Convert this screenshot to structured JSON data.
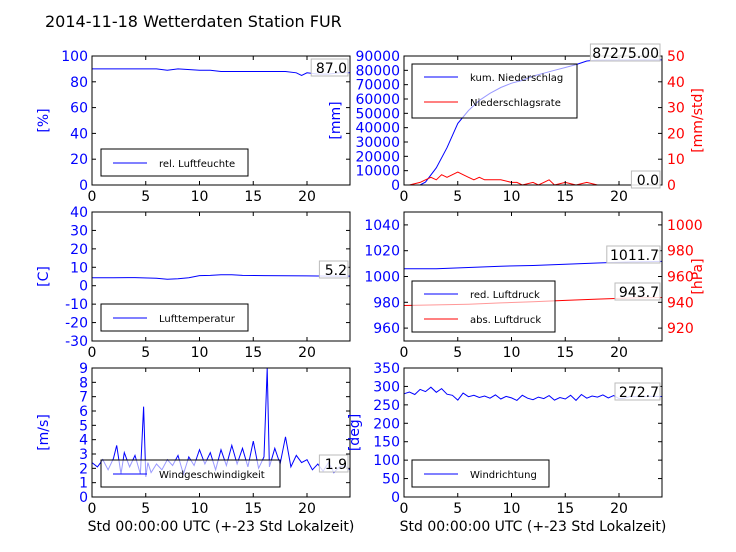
{
  "title": "2014-11-18 Wetterdaten Station FUR",
  "colors": {
    "primary": "#0000ff",
    "secondary": "#ff0000",
    "frame": "#000000",
    "axis_text": "#000000"
  },
  "chart_data": [
    {
      "type": "line",
      "id": "humidity",
      "ylabel": "[%]",
      "xlim": [
        0,
        24
      ],
      "ylim": [
        0,
        100
      ],
      "xticks": [
        "0",
        "5",
        "10",
        "15",
        "20"
      ],
      "yticks": [
        "0",
        "20",
        "40",
        "60",
        "80",
        "100"
      ],
      "last_value": "87.0",
      "legend": "lower-left",
      "series": [
        {
          "name": "rel. Luftfeuchte",
          "color": "#0000ff",
          "x": [
            0,
            2,
            4,
            6,
            7,
            8,
            10,
            11,
            12,
            14,
            16,
            18,
            19,
            19.5,
            20,
            21,
            22,
            23,
            24
          ],
          "y": [
            90,
            90,
            90,
            90,
            89,
            90,
            89,
            89,
            88,
            88,
            88,
            88,
            87,
            85,
            87,
            86,
            86,
            87,
            87
          ]
        }
      ]
    },
    {
      "type": "line",
      "id": "precipitation",
      "ylabel": "[mm]",
      "ylabel_right": "[mm/std]",
      "xlim": [
        0,
        24
      ],
      "ylim": [
        0,
        90000
      ],
      "ylim_right": [
        0,
        50
      ],
      "xticks": [
        "0",
        "5",
        "10",
        "15",
        "20"
      ],
      "yticks": [
        "0",
        "10000",
        "20000",
        "30000",
        "40000",
        "50000",
        "60000",
        "70000",
        "80000",
        "90000"
      ],
      "yticks_right": [
        "0",
        "10",
        "20",
        "30",
        "40",
        "50"
      ],
      "last_value": "87275.00",
      "last_value_right": "0.0",
      "legend": "upper-left",
      "series": [
        {
          "name": "kum. Niederschlag",
          "color": "#0000ff",
          "axis": "left",
          "x": [
            0,
            1.5,
            2,
            3,
            4,
            5,
            6,
            7,
            8,
            9,
            10,
            11,
            12,
            13,
            14,
            15,
            16,
            17,
            18,
            20,
            22,
            24
          ],
          "y": [
            0,
            0,
            2000,
            12000,
            26000,
            43000,
            52000,
            59000,
            64000,
            68000,
            71000,
            73000,
            76000,
            78000,
            80000,
            82000,
            84000,
            86500,
            87200,
            87275,
            87275,
            87275
          ]
        },
        {
          "name": "Niederschlagsrate",
          "color": "#ff0000",
          "axis": "right",
          "x": [
            0.5,
            1.5,
            2,
            2.5,
            3,
            3.5,
            4,
            4.5,
            5,
            5.5,
            6,
            6.5,
            7,
            7.5,
            8,
            9,
            10,
            10.5,
            11,
            12,
            12.5,
            13,
            13.5,
            14,
            15,
            16,
            17,
            18,
            19,
            20,
            21,
            22,
            23,
            24
          ],
          "y": [
            0,
            1,
            2,
            3,
            2,
            4,
            3,
            4,
            5,
            4,
            3,
            2,
            3,
            2,
            2,
            2,
            1,
            1,
            0,
            1,
            0,
            1,
            2,
            0,
            1,
            0,
            1,
            0,
            0,
            0,
            0,
            0,
            0,
            0
          ]
        }
      ]
    },
    {
      "type": "line",
      "id": "temperature",
      "ylabel": "[C]",
      "xlim": [
        0,
        24
      ],
      "ylim": [
        -30,
        40
      ],
      "xticks": [
        "0",
        "5",
        "10",
        "15",
        "20"
      ],
      "yticks": [
        "-30",
        "-20",
        "-10",
        "0",
        "10",
        "20",
        "30",
        "40"
      ],
      "last_value": "5.2",
      "legend": "lower-left",
      "series": [
        {
          "name": "Lufttemperatur",
          "color": "#0000ff",
          "x": [
            0,
            2,
            4,
            6,
            7,
            8,
            9,
            10,
            11,
            12,
            13,
            14,
            16,
            18,
            20,
            22,
            24
          ],
          "y": [
            4.3,
            4.3,
            4.4,
            4.0,
            3.5,
            3.8,
            4.3,
            5.5,
            5.6,
            6.0,
            5.9,
            5.6,
            5.5,
            5.4,
            5.3,
            5.2,
            5.2
          ]
        }
      ]
    },
    {
      "type": "line",
      "id": "pressure",
      "ylim": [
        950,
        1050
      ],
      "ylim_right": [
        910,
        1010
      ],
      "xlim": [
        0,
        24
      ],
      "ylabel_right": "[hPa]",
      "xticks": [
        "0",
        "5",
        "10",
        "15",
        "20"
      ],
      "yticks": [
        "960",
        "980",
        "1000",
        "1020",
        "1040"
      ],
      "yticks_right": [
        "920",
        "940",
        "960",
        "980",
        "1000"
      ],
      "last_value": "1011.7",
      "last_value_right": "943.7",
      "legend": "lower-left",
      "series": [
        {
          "name": "red. Luftdruck",
          "color": "#0000ff",
          "axis": "left",
          "x": [
            0,
            3,
            6,
            9,
            12,
            15,
            18,
            21,
            24
          ],
          "y": [
            1006,
            1006,
            1007,
            1008,
            1008.5,
            1009.5,
            1010.5,
            1011.3,
            1011.7
          ]
        },
        {
          "name": "abs. Luftdruck",
          "color": "#ff0000",
          "axis": "right",
          "x": [
            0,
            3,
            6,
            9,
            12,
            15,
            18,
            21,
            24
          ],
          "y": [
            937.5,
            938,
            938.5,
            939.5,
            940.5,
            941.5,
            942.5,
            943.3,
            943.7
          ]
        }
      ]
    },
    {
      "type": "line",
      "id": "windspeed",
      "ylabel": "[m/s]",
      "xlabel": "Std 00:00:00 UTC (+-23 Std Lokalzeit)",
      "xlim": [
        0,
        24
      ],
      "ylim": [
        0,
        9
      ],
      "xticks": [
        "0",
        "5",
        "10",
        "15",
        "20"
      ],
      "yticks": [
        "0",
        "1",
        "2",
        "3",
        "4",
        "5",
        "6",
        "7",
        "8",
        "9"
      ],
      "last_value": "1.9",
      "legend": "lower-left",
      "series": [
        {
          "name": "Windgeschwindigkeit",
          "color": "#0000ff",
          "x": [
            0,
            0.5,
            1,
            1.5,
            2,
            2.3,
            2.7,
            3,
            3.5,
            4,
            4.5,
            4.8,
            5,
            5.2,
            5.5,
            6,
            6.5,
            7,
            7.5,
            8,
            8.5,
            9,
            9.5,
            10,
            10.5,
            11,
            11.5,
            12,
            12.5,
            13,
            13.5,
            14,
            14.5,
            15,
            15.5,
            16,
            16.3,
            16.5,
            16.7,
            17,
            17.5,
            18,
            18.5,
            19,
            19.5,
            20,
            20.5,
            21,
            21.5,
            22,
            22.5,
            23,
            23.5,
            24
          ],
          "y": [
            2.4,
            2.1,
            2.6,
            1.9,
            2.7,
            3.6,
            1.6,
            3.1,
            2.1,
            2.9,
            1.6,
            6.3,
            1.4,
            2.4,
            1.7,
            2.3,
            1.9,
            2.6,
            2.2,
            2.9,
            1.6,
            2.8,
            2.2,
            3.3,
            2.3,
            3.1,
            1.9,
            3.3,
            2.2,
            3.6,
            2.3,
            3.4,
            2.1,
            3.9,
            2.0,
            2.8,
            9.0,
            2.1,
            2.6,
            3.4,
            2.3,
            4.2,
            2.1,
            2.9,
            2.4,
            2.6,
            1.9,
            2.3,
            1.8,
            2.4,
            1.7,
            2.1,
            2.2,
            1.9
          ]
        }
      ]
    },
    {
      "type": "line",
      "id": "winddirection",
      "ylabel": "[deg]",
      "xlabel": "Std 00:00:00 UTC (+-23 Std Lokalzeit)",
      "xlim": [
        0,
        24
      ],
      "ylim": [
        0,
        350
      ],
      "xticks": [
        "0",
        "5",
        "10",
        "15",
        "20"
      ],
      "yticks": [
        "0",
        "50",
        "100",
        "150",
        "200",
        "250",
        "300",
        "350"
      ],
      "last_value": "272.7",
      "legend": "lower-left",
      "series": [
        {
          "name": "Windrichtung",
          "color": "#0000ff",
          "x": [
            0,
            0.5,
            1,
            1.5,
            2,
            2.5,
            3,
            3.5,
            4,
            4.5,
            5,
            5.5,
            6,
            6.5,
            7,
            7.5,
            8,
            8.5,
            9,
            9.5,
            10,
            10.5,
            11,
            11.5,
            12,
            12.5,
            13,
            13.5,
            14,
            14.5,
            15,
            15.5,
            16,
            16.5,
            17,
            17.5,
            18,
            18.5,
            19,
            19.5,
            20,
            20.5,
            21,
            22,
            23,
            24
          ],
          "y": [
            280,
            285,
            278,
            292,
            286,
            298,
            284,
            294,
            279,
            276,
            263,
            282,
            272,
            276,
            270,
            274,
            268,
            277,
            266,
            273,
            269,
            262,
            276,
            268,
            264,
            271,
            267,
            275,
            263,
            270,
            266,
            276,
            262,
            278,
            268,
            274,
            271,
            277,
            269,
            275,
            267,
            268,
            273,
            272,
            273,
            272.7
          ]
        }
      ]
    }
  ]
}
